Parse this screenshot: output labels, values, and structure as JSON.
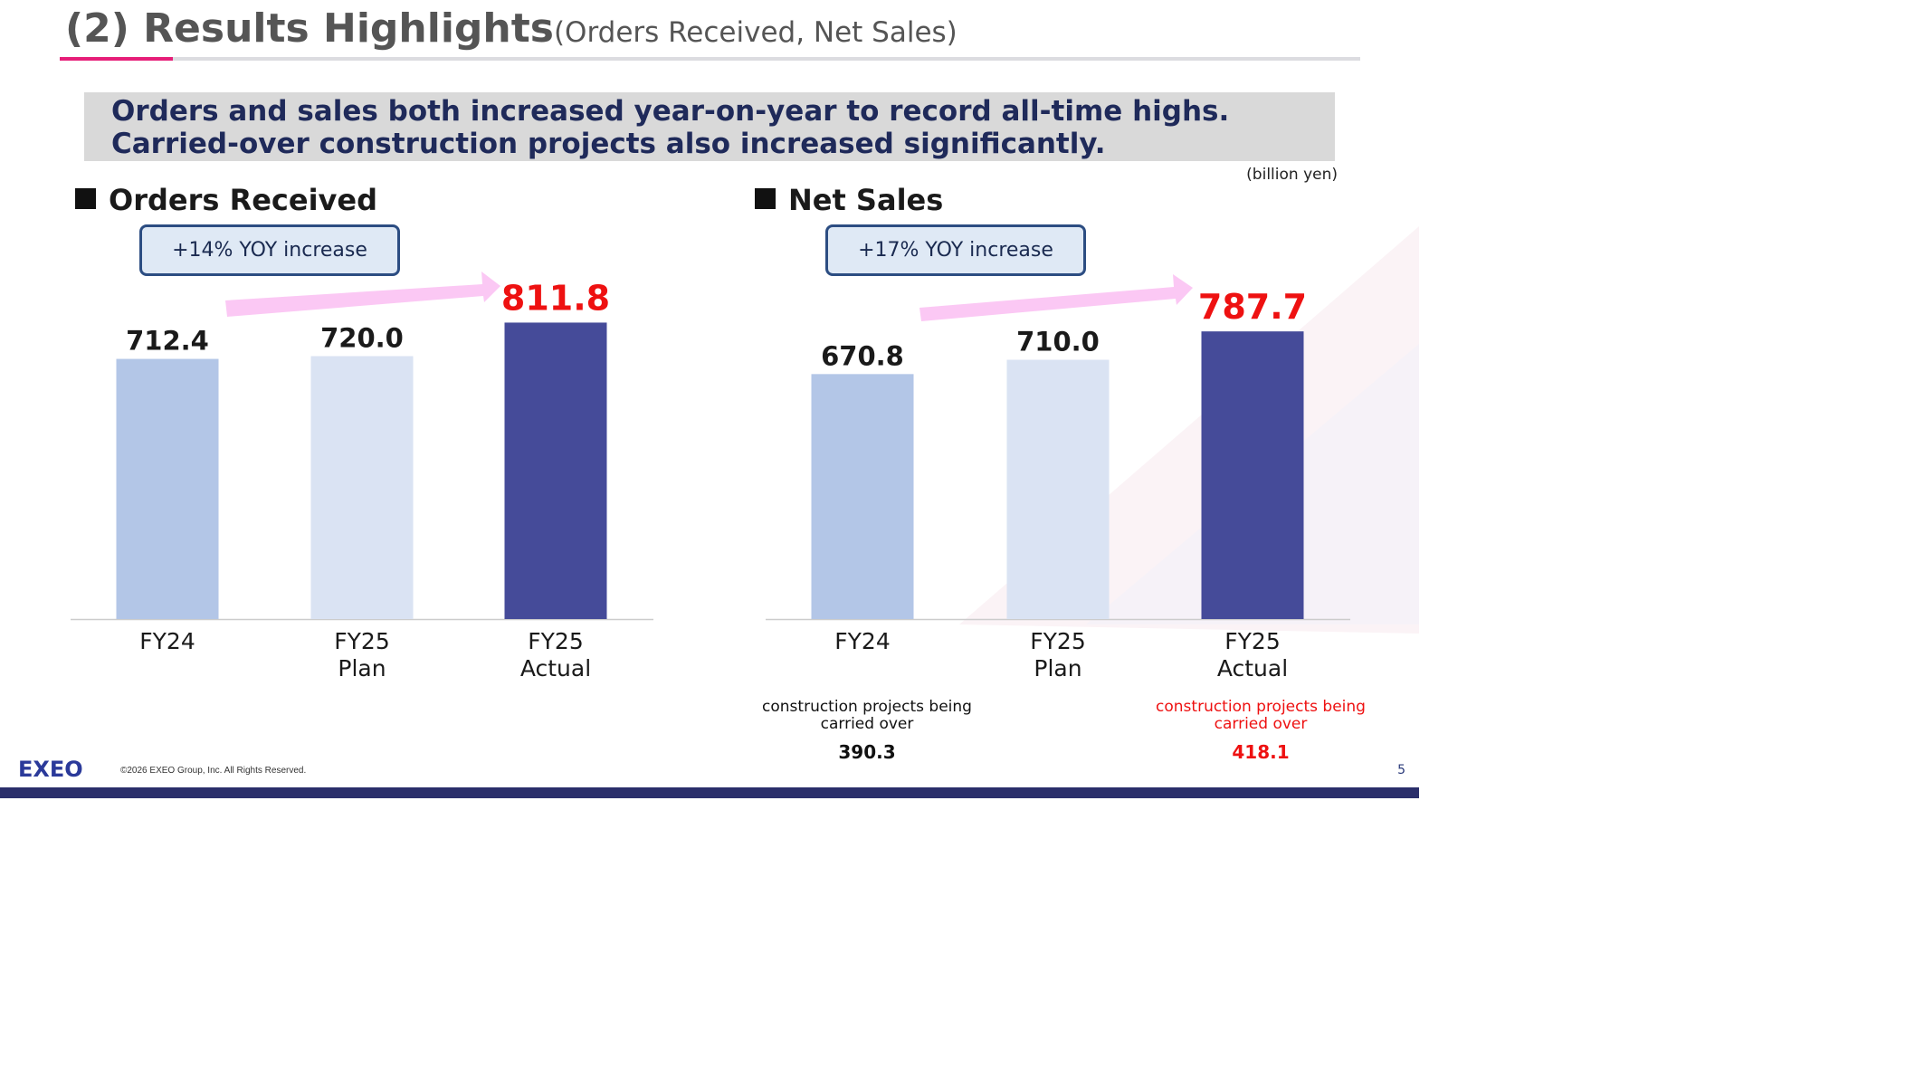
{
  "header": {
    "title": "(2) Results Highlights",
    "subtitle": "(Orders Received, Net Sales)"
  },
  "summary": {
    "line1": "Orders and sales both increased year-on-year to record all-time highs.",
    "line2": "Carried-over construction projects also increased significantly."
  },
  "unit_label": "(billion yen)",
  "sections": {
    "orders": {
      "title": "Orders Received",
      "yoy": "+14% YOY increase"
    },
    "sales": {
      "title": "Net Sales",
      "yoy": "+17% YOY increase"
    }
  },
  "colors": {
    "bar_fy24": "#b3c6e7",
    "bar_fy25_plan": "#dae3f3",
    "bar_fy25_actual": "#454b99",
    "highlight_red": "#ee1111",
    "arrow_pink": "#fbc8f4",
    "accent_magenta": "#e61e78",
    "navy": "#2b2f6b"
  },
  "chart_data": [
    {
      "type": "bar",
      "title": "Orders Received",
      "categories": [
        "FY24",
        "FY25\nPlan",
        "FY25\nActual"
      ],
      "values": [
        712.4,
        720.0,
        811.8
      ],
      "value_labels": [
        "712.4",
        "720.0",
        "811.8"
      ],
      "highlight_index": 2,
      "ylim": [
        0,
        830
      ],
      "grid": false,
      "legend": "none"
    },
    {
      "type": "bar",
      "title": "Net Sales",
      "categories": [
        "FY24",
        "FY25\nPlan",
        "FY25\nActual"
      ],
      "values": [
        670.8,
        710.0,
        787.7
      ],
      "value_labels": [
        "670.8",
        "710.0",
        "787.7"
      ],
      "highlight_index": 2,
      "ylim": [
        0,
        830
      ],
      "grid": false,
      "legend": "none"
    }
  ],
  "carried_over": {
    "fy24": {
      "label": "construction projects being carried over",
      "value": "390.3"
    },
    "fy25_actual": {
      "label": "construction projects being carried over",
      "value": "418.1"
    }
  },
  "footer": {
    "logo_text": "EXEO",
    "copyright": "©2026 EXEO Group, Inc. All Rights Reserved.",
    "page_number": "5"
  }
}
